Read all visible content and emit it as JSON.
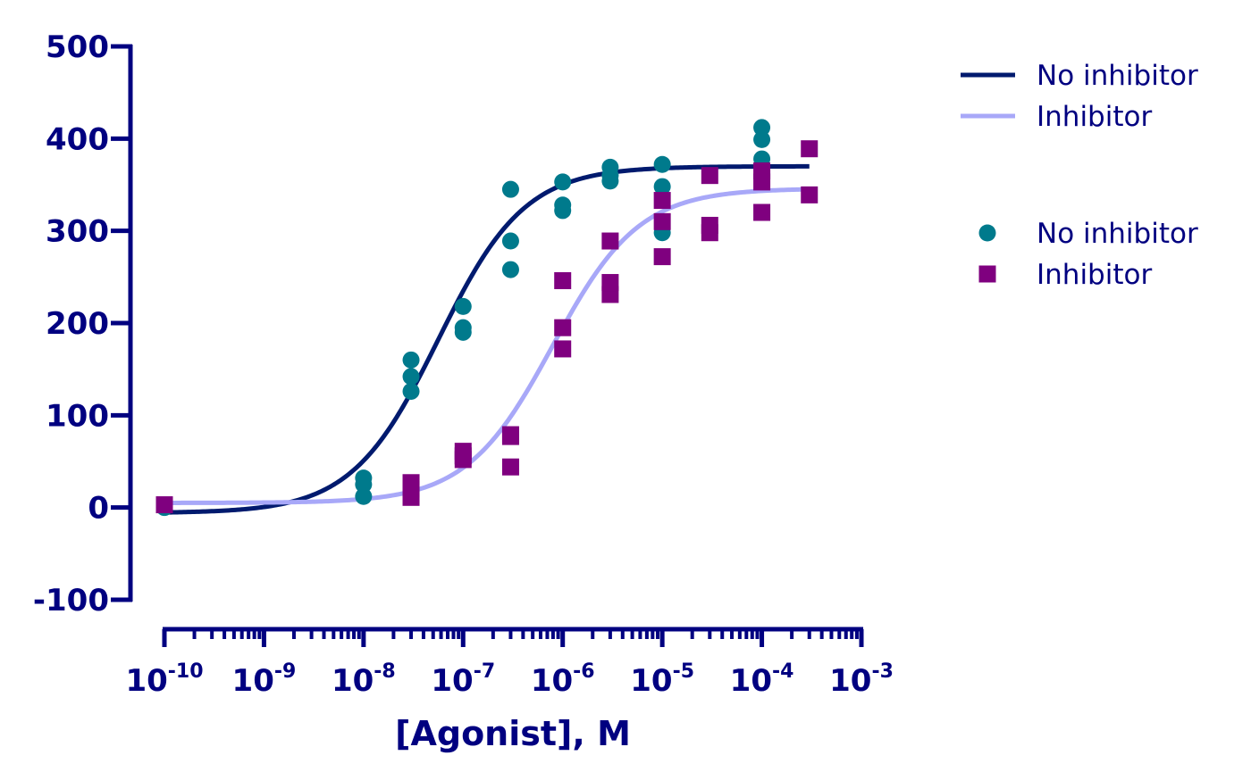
{
  "chart_data": {
    "type": "scatter",
    "title": "",
    "xlabel": "[Agonist], M",
    "ylabel": "",
    "x_scale": "log",
    "xlim": [
      1e-10,
      0.001
    ],
    "ylim": [
      -100,
      500
    ],
    "y_ticks": [
      -100,
      0,
      100,
      200,
      300,
      400,
      500
    ],
    "y_tick_labels": [
      "-100",
      "0",
      "100",
      "200",
      "300",
      "400",
      "500"
    ],
    "x_ticks": [
      1e-10,
      1e-09,
      1e-08,
      1e-07,
      1e-06,
      1e-05,
      0.0001,
      0.001
    ],
    "x_tick_labels": [
      {
        "base": "10",
        "exp": "-10"
      },
      {
        "base": "10",
        "exp": "-9"
      },
      {
        "base": "10",
        "exp": "-8"
      },
      {
        "base": "10",
        "exp": "-7"
      },
      {
        "base": "10",
        "exp": "-6"
      },
      {
        "base": "10",
        "exp": "-5"
      },
      {
        "base": "10",
        "exp": "-4"
      },
      {
        "base": "10",
        "exp": "-3"
      }
    ],
    "grid": false,
    "legend_position": "top-right",
    "curves": [
      {
        "name": "No inhibitor",
        "color": "#001a6e",
        "bottom": -6,
        "top": 370,
        "logEC50": -7.25,
        "hill": 1.0
      },
      {
        "name": "Inhibitor",
        "color": "#a8a8f8",
        "bottom": 5,
        "top": 346,
        "logEC50": -6.1,
        "hill": 1.0
      }
    ],
    "series": [
      {
        "name": "No inhibitor",
        "marker": "circle",
        "color": "#007a8c",
        "points": [
          {
            "x": 1e-10,
            "y": 0
          },
          {
            "x": 1e-08,
            "y": 12
          },
          {
            "x": 1e-08,
            "y": 25
          },
          {
            "x": 1e-08,
            "y": 32
          },
          {
            "x": 3e-08,
            "y": 126
          },
          {
            "x": 3e-08,
            "y": 142
          },
          {
            "x": 3e-08,
            "y": 160
          },
          {
            "x": 1e-07,
            "y": 190
          },
          {
            "x": 1e-07,
            "y": 195
          },
          {
            "x": 1e-07,
            "y": 218
          },
          {
            "x": 3e-07,
            "y": 258
          },
          {
            "x": 3e-07,
            "y": 289
          },
          {
            "x": 3e-07,
            "y": 345
          },
          {
            "x": 1e-06,
            "y": 322
          },
          {
            "x": 1e-06,
            "y": 328
          },
          {
            "x": 1e-06,
            "y": 353
          },
          {
            "x": 3e-06,
            "y": 354
          },
          {
            "x": 3e-06,
            "y": 360
          },
          {
            "x": 3e-06,
            "y": 369
          },
          {
            "x": 1e-05,
            "y": 298
          },
          {
            "x": 1e-05,
            "y": 348
          },
          {
            "x": 1e-05,
            "y": 372
          },
          {
            "x": 0.0001,
            "y": 378
          },
          {
            "x": 0.0001,
            "y": 399
          },
          {
            "x": 0.0001,
            "y": 412
          }
        ]
      },
      {
        "name": "Inhibitor",
        "marker": "square",
        "color": "#7f007f",
        "points": [
          {
            "x": 1e-10,
            "y": 3
          },
          {
            "x": 3e-08,
            "y": 11
          },
          {
            "x": 3e-08,
            "y": 20
          },
          {
            "x": 3e-08,
            "y": 27
          },
          {
            "x": 1e-07,
            "y": 52
          },
          {
            "x": 1e-07,
            "y": 56
          },
          {
            "x": 1e-07,
            "y": 61
          },
          {
            "x": 3e-07,
            "y": 44
          },
          {
            "x": 3e-07,
            "y": 77
          },
          {
            "x": 3e-07,
            "y": 79
          },
          {
            "x": 1e-06,
            "y": 172
          },
          {
            "x": 1e-06,
            "y": 195
          },
          {
            "x": 1e-06,
            "y": 246
          },
          {
            "x": 3e-06,
            "y": 231
          },
          {
            "x": 3e-06,
            "y": 244
          },
          {
            "x": 3e-06,
            "y": 289
          },
          {
            "x": 1e-05,
            "y": 272
          },
          {
            "x": 1e-05,
            "y": 310
          },
          {
            "x": 1e-05,
            "y": 333
          },
          {
            "x": 3e-05,
            "y": 298
          },
          {
            "x": 3e-05,
            "y": 306
          },
          {
            "x": 3e-05,
            "y": 360
          },
          {
            "x": 0.0001,
            "y": 320
          },
          {
            "x": 0.0001,
            "y": 353
          },
          {
            "x": 0.0001,
            "y": 365
          },
          {
            "x": 0.0003,
            "y": 339
          },
          {
            "x": 0.0003,
            "y": 389
          }
        ]
      }
    ],
    "legend": {
      "line_entries": [
        {
          "label": "No inhibitor",
          "color": "#001a6e"
        },
        {
          "label": "Inhibitor",
          "color": "#a8a8f8"
        }
      ],
      "marker_entries": [
        {
          "label": "No inhibitor",
          "marker": "circle",
          "color": "#007a8c"
        },
        {
          "label": "Inhibitor",
          "marker": "square",
          "color": "#7f007f"
        }
      ]
    },
    "axis_color": "#000080"
  }
}
